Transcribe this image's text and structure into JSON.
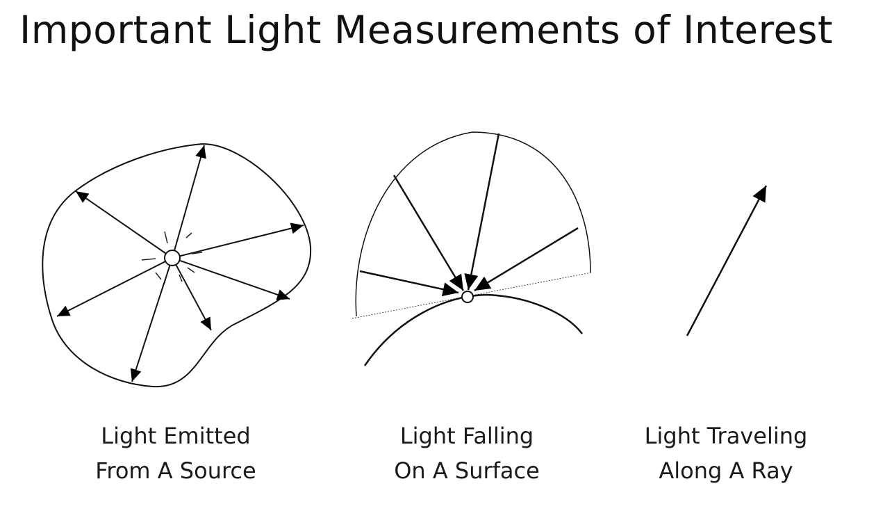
{
  "slide": {
    "title": "Important Light Measurements of Interest"
  },
  "panels": [
    {
      "line1": "Light Emitted",
      "line2": "From A Source"
    },
    {
      "line1": "Light Falling",
      "line2": "On A Surface"
    },
    {
      "line1": "Light Traveling",
      "line2": "Along A Ray"
    }
  ]
}
